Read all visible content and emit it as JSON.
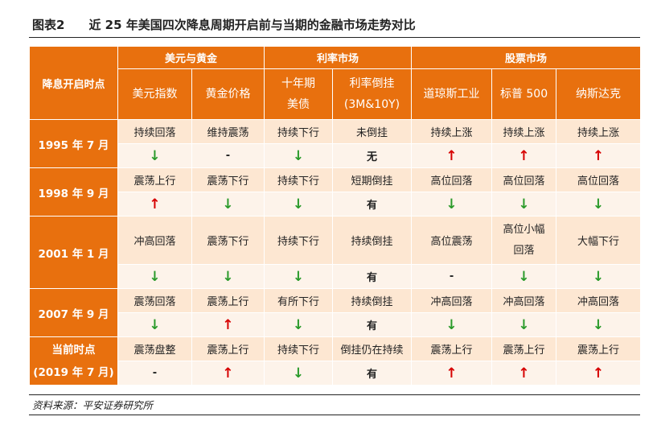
{
  "figure": {
    "number": "图表2",
    "title": "近 25 年美国四次降息周期开启前与当期的金融市场走势对比"
  },
  "header": {
    "row_header": "降息开启时点",
    "groups": [
      "美元与黄金",
      "利率市场",
      "股票市场"
    ],
    "columns": [
      "美元指数",
      "黄金价格",
      "十年期美债",
      "利率倒挂(3M&10Y)",
      "道琼斯工业",
      "标普 500",
      "纳斯达克"
    ],
    "col3_line1": "十年期",
    "col3_line2": "美债",
    "col4_line1": "利率倒挂",
    "col4_line2": "(3M&10Y)"
  },
  "rows": [
    {
      "label": "1995 年 7 月",
      "trend": [
        "持续回落",
        "维持震荡",
        "持续下行",
        "未倒挂",
        "持续上涨",
        "持续上涨",
        "持续上涨"
      ],
      "signal": [
        "down",
        "dash",
        "down",
        "无",
        "up",
        "up",
        "up"
      ]
    },
    {
      "label": "1998 年 9 月",
      "trend": [
        "震荡上行",
        "震荡下行",
        "持续下行",
        "短期倒挂",
        "高位回落",
        "高位回落",
        "高位回落"
      ],
      "signal": [
        "up",
        "down",
        "down",
        "有",
        "down",
        "down",
        "down"
      ]
    },
    {
      "label": "2001 年 1 月",
      "trend": [
        "冲高回落",
        "震荡下行",
        "持续下行",
        "持续倒挂",
        "高位震荡",
        "高位小幅回落",
        "大幅下行"
      ],
      "trend_split": {
        "5": [
          "高位小幅",
          "回落"
        ]
      },
      "signal": [
        "down",
        "down",
        "down",
        "有",
        "dash",
        "down",
        "down"
      ]
    },
    {
      "label": "2007 年 9 月",
      "trend": [
        "震荡回落",
        "震荡上行",
        "有所下行",
        "持续倒挂",
        "冲高回落",
        "冲高回落",
        "冲高回落"
      ],
      "signal": [
        "down",
        "up",
        "down",
        "有",
        "down",
        "down",
        "down"
      ]
    },
    {
      "label_line1": "当前时点",
      "label_line2": "(2019 年 7 月)",
      "trend": [
        "震荡盘整",
        "震荡上行",
        "持续下行",
        "倒挂仍在持续",
        "震荡上行",
        "震荡上行",
        "震荡上行"
      ],
      "signal": [
        "dash",
        "up",
        "down",
        "有",
        "up",
        "up",
        "up"
      ]
    }
  ],
  "glyphs": {
    "up": "↑",
    "down": "↓",
    "dash": "-"
  },
  "colors": {
    "header_bg": "#e8700e",
    "row_a": "#fde7d2",
    "row_b": "#fdf3ea",
    "up": "#d60000",
    "down": "#2a9a2a"
  },
  "source": "资料来源：平安证券研究所"
}
